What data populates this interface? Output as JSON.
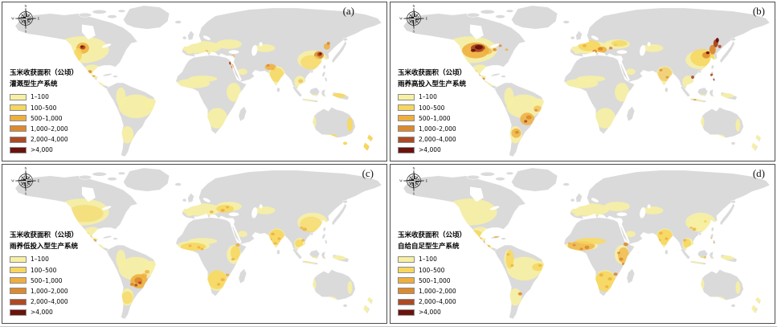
{
  "figure": {
    "legend_title": "玉米收获面积（公顷）",
    "classes": [
      {
        "label": "1–100",
        "color": "#F7F0A2"
      },
      {
        "label": "100–500",
        "color": "#F6D65F"
      },
      {
        "label": "500–1,000",
        "color": "#EFAF3E"
      },
      {
        "label": "1,000–2,000",
        "color": "#DC8A2E"
      },
      {
        "label": "2,000–4,000",
        "color": "#AD4B25"
      },
      {
        "label": ">4,000",
        "color": "#6B130D"
      }
    ],
    "panels": [
      {
        "label": "(a)",
        "subtitle": "灌溉型生产系统"
      },
      {
        "label": "(b)",
        "subtitle": "雨养高投入型生产系统"
      },
      {
        "label": "(c)",
        "subtitle": "雨养低投入型生产系统"
      },
      {
        "label": "(d)",
        "subtitle": "自给自足型生产系统"
      }
    ],
    "compass": {
      "n": "N",
      "e": "E",
      "s": "S",
      "w": "W"
    },
    "map_colors": {
      "land": "#DADADA",
      "ocean": "#FFFFFF",
      "border": "#FFFFFF"
    }
  }
}
